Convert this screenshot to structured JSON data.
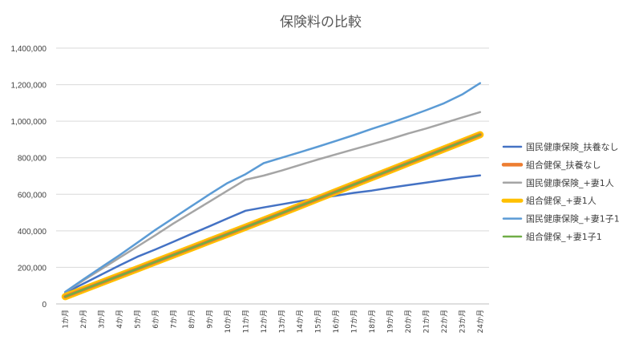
{
  "chart_data": {
    "type": "line",
    "title": "保険料の比較",
    "xlabel": "",
    "ylabel": "",
    "ylim": [
      0,
      1400000
    ],
    "yticks": [
      0,
      200000,
      400000,
      600000,
      800000,
      1000000,
      1200000,
      1400000
    ],
    "ytick_labels": [
      "0",
      "200,000",
      "400,000",
      "600,000",
      "800,000",
      "1,000,000",
      "1,200,000",
      "1,400,000"
    ],
    "grid": true,
    "legend_position": "right",
    "categories": [
      "1か月",
      "2か月",
      "3か月",
      "4か月",
      "5か月",
      "6か月",
      "7か月",
      "8か月",
      "9か月",
      "10か月",
      "11か月",
      "12か月",
      "13か月",
      "14か月",
      "15か月",
      "16か月",
      "17か月",
      "18か月",
      "19か月",
      "20か月",
      "21か月",
      "22か月",
      "23か月",
      "24か月"
    ],
    "series": [
      {
        "name": "国民健康保険_扶養なし",
        "color": "#4472c4",
        "width": 2.5,
        "values": [
          60000,
          110000,
          160000,
          210000,
          258000,
          298000,
          340000,
          383000,
          425000,
          468000,
          510000,
          528000,
          545000,
          562000,
          578000,
          592000,
          608000,
          620000,
          636000,
          650000,
          664000,
          678000,
          692000,
          703000
        ]
      },
      {
        "name": "国民健康保険_+妻1人",
        "color": "#a5a5a5",
        "width": 2.5,
        "values": [
          64000,
          128000,
          190000,
          252000,
          314000,
          376000,
          440000,
          500000,
          560000,
          620000,
          680000,
          702000,
          730000,
          760000,
          790000,
          818000,
          846000,
          874000,
          902000,
          932000,
          960000,
          990000,
          1020000,
          1050000
        ]
      },
      {
        "name": "国民健康保険_+妻1子1",
        "color": "#5b9bd5",
        "width": 2.5,
        "values": [
          66000,
          134000,
          200000,
          266000,
          335000,
          405000,
          470000,
          535000,
          600000,
          662000,
          710000,
          770000,
          800000,
          830000,
          860000,
          892000,
          924000,
          958000,
          990000,
          1024000,
          1060000,
          1098000,
          1146000,
          1208000
        ]
      },
      {
        "name": "組合健保_+妻1人",
        "color": "#ffc000",
        "width": 9,
        "values": [
          40000,
          78000,
          116000,
          154000,
          192000,
          230000,
          268000,
          306000,
          344000,
          382000,
          420000,
          458000,
          497000,
          536000,
          575000,
          614000,
          653000,
          692000,
          731000,
          770000,
          809000,
          848000,
          887000,
          926000
        ]
      },
      {
        "name": "組合健保_扶養なし",
        "color": "#ed7d31",
        "width": 4.5,
        "values": [
          40000,
          78000,
          116000,
          154000,
          192000,
          230000,
          268000,
          306000,
          344000,
          382000,
          420000,
          458000,
          497000,
          536000,
          575000,
          614000,
          653000,
          692000,
          731000,
          770000,
          809000,
          848000,
          887000,
          926000
        ]
      },
      {
        "name": "組合健保_+妻1子1",
        "color": "#70ad47",
        "width": 2.5,
        "values": [
          40000,
          78000,
          116000,
          154000,
          192000,
          230000,
          268000,
          306000,
          344000,
          382000,
          420000,
          458000,
          497000,
          536000,
          575000,
          614000,
          653000,
          692000,
          731000,
          770000,
          809000,
          848000,
          887000,
          926000
        ]
      }
    ],
    "legend_order": [
      "国民健康保険_扶養なし",
      "組合健保_扶養なし",
      "国民健康保険_+妻1人",
      "組合健保_+妻1人",
      "国民健康保険_+妻1子1",
      "組合健保_+妻1子1"
    ]
  }
}
